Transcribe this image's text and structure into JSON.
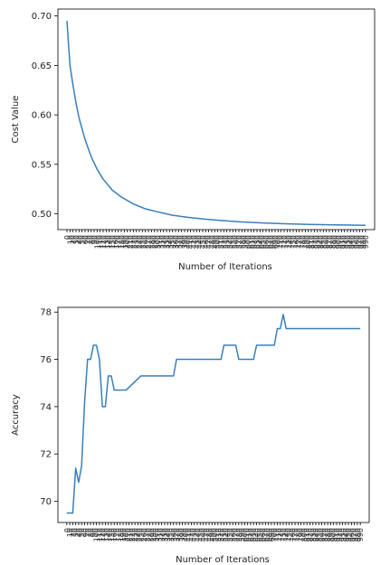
{
  "colors": {
    "series": "#3a7fb8"
  },
  "chart_data": [
    {
      "type": "line",
      "xlabel": "Number of Iterations",
      "ylabel": "Cost Value",
      "ylim": [
        0.484,
        0.707
      ],
      "yticks": [
        "0.50",
        "0.55",
        "0.60",
        "0.65",
        "0.70"
      ],
      "ytick_values": [
        0.5,
        0.55,
        0.6,
        0.65,
        0.7
      ],
      "xtick_labels": [
        "0",
        "10",
        "20",
        "30",
        "40",
        "50",
        "60",
        "70",
        "80",
        "90",
        "100",
        "110",
        "120",
        "130",
        "140",
        "150",
        "160",
        "170",
        "180",
        "190",
        "200",
        "210",
        "220",
        "230",
        "240",
        "250",
        "260",
        "270",
        "280",
        "290",
        "300",
        "310",
        "320",
        "330",
        "340",
        "350",
        "360",
        "370",
        "380",
        "390",
        "400",
        "410",
        "420",
        "430",
        "440",
        "450",
        "460",
        "470",
        "480",
        "490",
        "500",
        "510",
        "520",
        "530",
        "540",
        "550",
        "560",
        "570",
        "580",
        "590",
        "600",
        "610",
        "620",
        "630",
        "640",
        "650",
        "660",
        "670",
        "680",
        "690",
        "700",
        "710",
        "720",
        "730",
        "740",
        "750",
        "760",
        "770",
        "780",
        "790",
        "800",
        "810",
        "820",
        "830",
        "840",
        "850",
        "860",
        "870",
        "880",
        "890",
        "900",
        "910",
        "920",
        "930",
        "940",
        "950",
        "960",
        "970",
        "980",
        "990"
      ],
      "grid": false,
      "series": [
        {
          "x": [
            0,
            1,
            2,
            3,
            4,
            6,
            8,
            10,
            12,
            15,
            18,
            22,
            26,
            30,
            35,
            40,
            46,
            52,
            58,
            65,
            72,
            80,
            89,
            99
          ],
          "values": [
            0.695,
            0.65,
            0.63,
            0.612,
            0.597,
            0.575,
            0.558,
            0.545,
            0.535,
            0.524,
            0.517,
            0.51,
            0.505,
            0.502,
            0.4985,
            0.4965,
            0.4945,
            0.493,
            0.4918,
            0.4907,
            0.4899,
            0.4893,
            0.4888,
            0.4884
          ]
        }
      ]
    },
    {
      "type": "line",
      "xlabel": "Number of Iterations",
      "ylabel": "Accuracy",
      "ylim": [
        69.1,
        78.2
      ],
      "yticks": [
        "70",
        "72",
        "74",
        "76",
        "78"
      ],
      "ytick_values": [
        70,
        72,
        74,
        76,
        78
      ],
      "xtick_labels": [
        "0",
        "10",
        "20",
        "30",
        "40",
        "50",
        "60",
        "70",
        "80",
        "90",
        "100",
        "110",
        "120",
        "130",
        "140",
        "150",
        "160",
        "170",
        "180",
        "190",
        "200",
        "210",
        "220",
        "230",
        "240",
        "250",
        "260",
        "270",
        "280",
        "290",
        "300",
        "310",
        "320",
        "330",
        "340",
        "350",
        "360",
        "370",
        "380",
        "390",
        "400",
        "410",
        "420",
        "430",
        "440",
        "450",
        "460",
        "470",
        "480",
        "490",
        "500",
        "510",
        "520",
        "530",
        "540",
        "550",
        "560",
        "570",
        "580",
        "590",
        "600",
        "610",
        "620",
        "630",
        "640",
        "650",
        "660",
        "670",
        "680",
        "690",
        "700",
        "710",
        "720",
        "730",
        "740",
        "750",
        "760",
        "770",
        "780",
        "790",
        "800",
        "810",
        "820",
        "830",
        "840",
        "850",
        "860",
        "870",
        "880",
        "890",
        "900",
        "910",
        "920",
        "930",
        "940",
        "950",
        "960",
        "970",
        "980",
        "990"
      ],
      "grid": false,
      "series": [
        {
          "x": [
            0,
            2,
            3,
            4,
            5,
            6,
            7,
            8,
            9,
            10,
            11,
            12,
            13,
            14,
            15,
            16,
            17,
            18,
            19,
            20,
            25,
            26,
            36,
            37,
            52,
            53,
            57,
            58,
            63,
            64,
            70,
            71,
            72,
            73,
            74,
            99
          ],
          "values": [
            69.5,
            69.5,
            71.4,
            70.8,
            71.5,
            74.2,
            76.0,
            76.0,
            76.6,
            76.6,
            76.0,
            74.0,
            74.0,
            75.3,
            75.3,
            74.7,
            74.7,
            74.7,
            74.7,
            74.7,
            75.3,
            75.3,
            75.3,
            76.0,
            76.0,
            76.6,
            76.6,
            76.0,
            76.0,
            76.6,
            76.6,
            77.3,
            77.3,
            77.9,
            77.3,
            77.3
          ]
        }
      ]
    }
  ]
}
